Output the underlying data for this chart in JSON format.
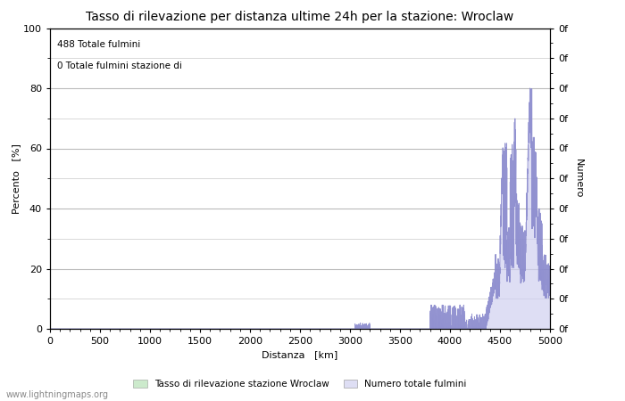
{
  "title": "Tasso di rilevazione per distanza ultime 24h per la stazione: Wroclaw",
  "xlabel": "Distanza   [km]",
  "ylabel_left": "Percento   [%]",
  "ylabel_right": "Numero",
  "annotation_line1": "488 Totale fulmini",
  "annotation_line2": "0 Totale fulmini stazione di",
  "legend_label1": "Tasso di rilevazione stazione Wroclaw",
  "legend_label2": "Numero totale fulmini",
  "watermark": "www.lightningmaps.org",
  "xlim": [
    0,
    5000
  ],
  "ylim_left": [
    0,
    100
  ],
  "background_color": "#ffffff",
  "plot_bg_color": "#ffffff",
  "grid_color": "#bbbbbb",
  "fill_color_left": "#aaddaa",
  "fill_color_right": "#d0d0f0",
  "line_color": "#8888cc",
  "title_fontsize": 10,
  "axis_fontsize": 8,
  "tick_fontsize": 8,
  "x_ticks": [
    0,
    500,
    1000,
    1500,
    2000,
    2500,
    3000,
    3500,
    4000,
    4500,
    5000
  ],
  "y_ticks_left": [
    0,
    20,
    40,
    60,
    80,
    100
  ],
  "y_minor_ticks": [
    10,
    30,
    50,
    70,
    90
  ]
}
